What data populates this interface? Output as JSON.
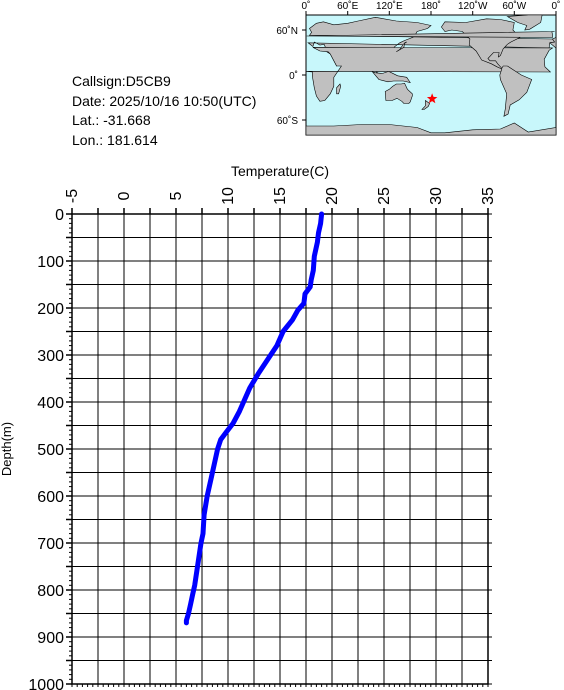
{
  "info": {
    "callsign": "Callsign:D5CB9",
    "date": "Date:  2025/10/16 10:50(UTC)",
    "lat": "Lat.:  -31.668",
    "lon": "Lon.:  181.614"
  },
  "map": {
    "lon_ticks": [
      "0˚",
      "60˚E",
      "120˚E",
      "180˚",
      "120˚W",
      "60˚W",
      "0˚"
    ],
    "lat_ticks": [
      "60˚N",
      "0˚",
      "60˚S"
    ],
    "ocean_color": "#c8f7fb",
    "land_color": "#c0c0c0",
    "marker_color": "#ff0000",
    "marker": {
      "lat": -31.668,
      "lon": 181.614
    }
  },
  "chart_data": {
    "type": "line",
    "xlabel": "Temperature(C)",
    "ylabel": "Depth(m)",
    "xlim": [
      -5,
      35
    ],
    "ylim": [
      0,
      1000
    ],
    "y_inverted": true,
    "x_axis_position": "top",
    "x_ticks": [
      -5,
      0,
      5,
      10,
      15,
      20,
      25,
      30,
      35
    ],
    "y_ticks": [
      0,
      100,
      200,
      300,
      400,
      500,
      600,
      700,
      800,
      900,
      1000
    ],
    "grid": true,
    "line_color": "#0000ff",
    "series": [
      {
        "x": [
          19.0,
          18.9,
          18.7,
          18.6,
          18.3,
          18.2,
          18.0,
          17.9,
          17.4,
          17.3,
          16.7,
          16.2,
          15.3,
          14.7,
          13.8,
          12.9,
          12.1,
          11.6,
          11.1,
          10.5,
          9.8,
          9.3,
          9.0,
          8.7,
          8.4,
          8.0,
          7.7,
          7.6,
          7.4,
          7.2,
          7.0,
          6.8,
          6.6,
          6.4,
          6.2,
          6.0,
          6.0
        ],
        "y": [
          0,
          20,
          40,
          60,
          90,
          120,
          140,
          155,
          170,
          190,
          205,
          225,
          250,
          280,
          310,
          340,
          370,
          395,
          420,
          445,
          465,
          480,
          500,
          530,
          560,
          600,
          640,
          680,
          700,
          730,
          760,
          790,
          810,
          830,
          850,
          865,
          870
        ]
      }
    ]
  }
}
